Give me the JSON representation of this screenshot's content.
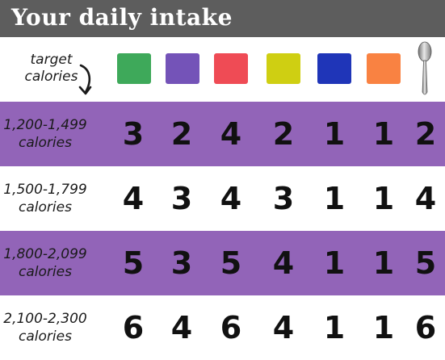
{
  "title": "Your daily intake",
  "header": {
    "target_label_line1": "target",
    "target_label_line2": "calories",
    "arrow_icon": "curved-down-arrow-icon",
    "spoon_icon": "spoon-icon",
    "swatches": [
      {
        "name": "green",
        "color": "#3ea95a"
      },
      {
        "name": "purple",
        "color": "#7453b8"
      },
      {
        "name": "red",
        "color": "#ef4b55"
      },
      {
        "name": "yellow",
        "color": "#cfcf12"
      },
      {
        "name": "blue",
        "color": "#1f35b8"
      },
      {
        "name": "orange",
        "color": "#f98242"
      }
    ]
  },
  "colors": {
    "banner": "#5d5d5d",
    "stripe": "#9264b8",
    "white": "#ffffff"
  },
  "rows": [
    {
      "range": "1,200-1,499",
      "unit": "calories",
      "values": [
        "3",
        "2",
        "4",
        "2",
        "1",
        "1",
        "2"
      ]
    },
    {
      "range": "1,500-1,799",
      "unit": "calories",
      "values": [
        "4",
        "3",
        "4",
        "3",
        "1",
        "1",
        "4"
      ]
    },
    {
      "range": "1,800-2,099",
      "unit": "calories",
      "values": [
        "5",
        "3",
        "5",
        "4",
        "1",
        "1",
        "5"
      ]
    },
    {
      "range": "2,100-2,300",
      "unit": "calories",
      "values": [
        "6",
        "4",
        "6",
        "4",
        "1",
        "1",
        "6"
      ]
    }
  ]
}
